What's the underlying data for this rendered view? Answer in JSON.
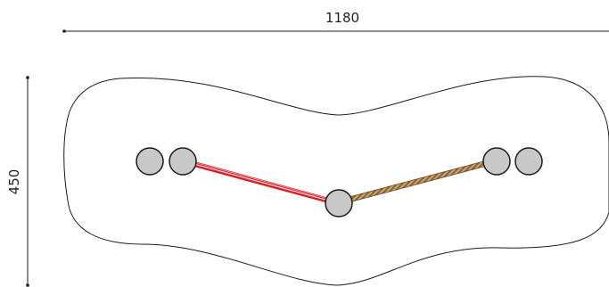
{
  "dimensions": {
    "width_label": "1180",
    "height_label": "450"
  },
  "colors": {
    "line": "#1a1a1a",
    "post_fill": "#c8c8c8",
    "post_stroke": "#1a1a1a",
    "red_rope": "#d9202a",
    "hemp_rope": "#c9a06a",
    "hemp_stripe": "#7a5a32"
  },
  "components": {
    "posts": [
      "post",
      "post",
      "post",
      "post",
      "post"
    ],
    "ropes": [
      "red-rope",
      "hemp-rope"
    ]
  }
}
